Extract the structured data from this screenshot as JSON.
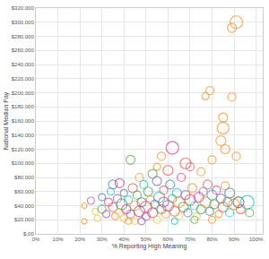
{
  "chart_data": {
    "type": "scatter",
    "x_label": "% Reporting High Meaning",
    "y_label": "National Median Pay",
    "marker": "circle-open",
    "grid": true,
    "xlim": [
      0,
      103
    ],
    "ylim": [
      0,
      320000
    ],
    "xticks": [
      {
        "value": 0,
        "label": "0%"
      },
      {
        "value": 10,
        "label": "10%"
      },
      {
        "value": 20,
        "label": "20%"
      },
      {
        "value": 30,
        "label": "30%"
      },
      {
        "value": 40,
        "label": "40%"
      },
      {
        "value": 50,
        "label": "50%"
      },
      {
        "value": 60,
        "label": "60%"
      },
      {
        "value": 70,
        "label": "70%"
      },
      {
        "value": 80,
        "label": "80%"
      },
      {
        "value": 90,
        "label": "90%"
      },
      {
        "value": 100,
        "label": "100%"
      }
    ],
    "yticks": [
      {
        "value": 0,
        "label": "$,00"
      },
      {
        "value": 20000,
        "label": "$20,000"
      },
      {
        "value": 40000,
        "label": "$40,000"
      },
      {
        "value": 60000,
        "label": "$60,000"
      },
      {
        "value": 80000,
        "label": "$80,000"
      },
      {
        "value": 100000,
        "label": "$100,000"
      },
      {
        "value": 120000,
        "label": "$120,000"
      },
      {
        "value": 140000,
        "label": "$140,000"
      },
      {
        "value": 160000,
        "label": "$160,000"
      },
      {
        "value": 180000,
        "label": "$180,000"
      },
      {
        "value": 200000,
        "label": "$200,000"
      },
      {
        "value": 220000,
        "label": "$220,000"
      },
      {
        "value": 240000,
        "label": "$240,000"
      },
      {
        "value": 260000,
        "label": "$260,000"
      },
      {
        "value": 280000,
        "label": "$280,000"
      },
      {
        "value": 300000,
        "label": "$300,000"
      },
      {
        "value": 320000,
        "label": "$320,000"
      }
    ],
    "x": [
      91,
      89,
      79,
      77,
      89,
      85,
      85,
      84,
      86,
      91,
      80,
      55,
      75,
      62,
      43,
      38,
      70,
      22,
      22,
      25,
      27,
      28,
      30,
      30,
      32,
      33,
      34,
      35,
      36,
      37,
      38,
      39,
      40,
      40,
      41,
      42,
      43,
      44,
      45,
      45,
      46,
      47,
      48,
      49,
      50,
      50,
      51,
      52,
      53,
      54,
      55,
      55,
      56,
      57,
      58,
      58,
      59,
      60,
      61,
      62,
      63,
      64,
      65,
      65,
      66,
      67,
      68,
      69,
      70,
      71,
      72,
      73,
      74,
      75,
      76,
      77,
      78,
      79,
      80,
      81,
      82,
      83,
      84,
      85,
      86,
      87,
      88,
      88,
      90,
      92,
      93,
      96,
      97,
      35,
      47,
      53,
      60,
      42,
      48,
      63,
      72,
      80,
      57,
      68
    ],
    "y": [
      300000,
      292000,
      203000,
      195000,
      194000,
      165000,
      150000,
      132000,
      120000,
      110000,
      105000,
      95000,
      88000,
      122000,
      105000,
      72000,
      95000,
      40000,
      18000,
      47000,
      32000,
      22000,
      35000,
      52000,
      28000,
      45000,
      60000,
      38000,
      25000,
      50000,
      30000,
      42000,
      58000,
      22000,
      35000,
      48000,
      28000,
      65000,
      40000,
      18000,
      55000,
      32000,
      45000,
      70000,
      25000,
      38000,
      60000,
      48000,
      30000,
      42000,
      75000,
      20000,
      52000,
      35000,
      62000,
      45000,
      28000,
      40000,
      70000,
      50000,
      32000,
      58000,
      45000,
      25000,
      80000,
      38000,
      55000,
      30000,
      48000,
      65000,
      40000,
      25000,
      52000,
      35000,
      60000,
      45000,
      70000,
      32000,
      55000,
      42000,
      62000,
      28000,
      50000,
      38000,
      68000,
      45000,
      30000,
      58000,
      42000,
      45000,
      35000,
      45000,
      30000,
      70000,
      80000,
      85000,
      90000,
      18000,
      18000,
      18000,
      20000,
      20000,
      110000,
      100000
    ],
    "sizes": [
      14,
      10,
      9,
      8,
      9,
      10,
      13,
      11,
      10,
      9,
      9,
      8,
      9,
      14,
      10,
      10,
      9,
      6,
      6,
      8,
      7,
      7,
      9,
      8,
      8,
      9,
      8,
      10,
      8,
      9,
      9,
      12,
      8,
      8,
      10,
      9,
      9,
      10,
      11,
      7,
      9,
      12,
      10,
      9,
      9,
      13,
      10,
      9,
      11,
      9,
      10,
      8,
      12,
      10,
      9,
      11,
      9,
      12,
      10,
      9,
      11,
      10,
      12,
      8,
      9,
      11,
      10,
      9,
      12,
      10,
      9,
      8,
      11,
      10,
      9,
      12,
      10,
      9,
      11,
      10,
      9,
      8,
      10,
      11,
      9,
      10,
      9,
      11,
      12,
      12,
      10,
      15,
      9,
      10,
      9,
      10,
      11,
      7,
      8,
      7,
      8,
      8,
      9,
      12
    ],
    "colors": [
      "#f28e2b",
      "#f28e2b",
      "#f28e2b",
      "#f28e2b",
      "#f28e2b",
      "#f28e2b",
      "#f28e2b",
      "#f28e2b",
      "#f28e2b",
      "#f28e2b",
      "#f28e2b",
      "#f28e2b",
      "#f28e2b",
      "#d63384",
      "#59a14f",
      "#d63384",
      "#e15759",
      "#f28e2b",
      "#f28e2b",
      "#9b59b6",
      "#edc948",
      "#edc948",
      "#59a14f",
      "#4e79a7",
      "#9b59b6",
      "#d63384",
      "#17becf",
      "#e15759",
      "#f28e2b",
      "#9b59b6",
      "#edc948",
      "#59a14f",
      "#4e79a7",
      "#edc948",
      "#d63384",
      "#17becf",
      "#9b59b6",
      "#e15759",
      "#f28e2b",
      "#edc948",
      "#59a14f",
      "#d63384",
      "#4e79a7",
      "#17becf",
      "#9b59b6",
      "#e15759",
      "#59a14f",
      "#f28e2b",
      "#d63384",
      "#4e79a7",
      "#9b59b6",
      "#edc948",
      "#17becf",
      "#59a14f",
      "#e15759",
      "#d63384",
      "#f28e2b",
      "#9b59b6",
      "#4e79a7",
      "#59a14f",
      "#e15759",
      "#17becf",
      "#f28e2b",
      "#edc948",
      "#d63384",
      "#59a14f",
      "#9b59b6",
      "#4e79a7",
      "#e15759",
      "#f28e2b",
      "#17becf",
      "#edc948",
      "#d63384",
      "#59a14f",
      "#9b59b6",
      "#f28e2b",
      "#e15759",
      "#4e79a7",
      "#17becf",
      "#59a14f",
      "#d63384",
      "#f28e2b",
      "#9b59b6",
      "#e15759",
      "#f28e2b",
      "#59a14f",
      "#17becf",
      "#4e79a7",
      "#f28e2b",
      "#555555",
      "#e15759",
      "#17becf",
      "#59a14f",
      "#4e79a7",
      "#f28e2b",
      "#59a14f",
      "#e15759",
      "#f28e2b",
      "#9b59b6",
      "#17becf",
      "#59a14f",
      "#f28e2b",
      "#f28e2b",
      "#e15759"
    ]
  }
}
